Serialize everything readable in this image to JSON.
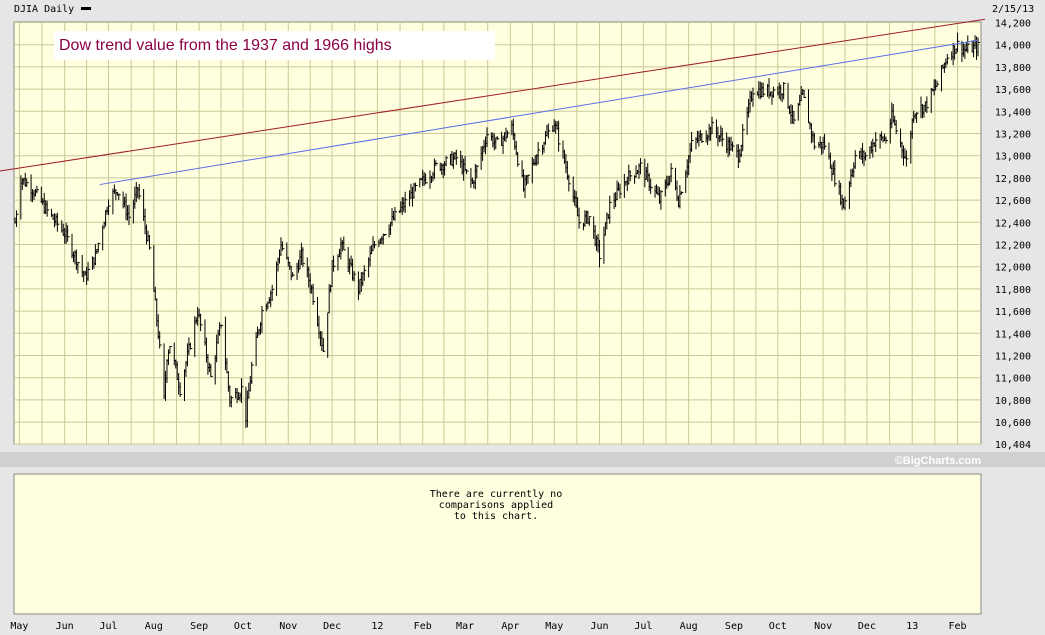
{
  "header": {
    "symbol_label": "DJIA Daily",
    "date_label": "2/15/13"
  },
  "annotation": {
    "text": "Dow trend value from the 1937 and 1966 highs",
    "color": "#8b0045"
  },
  "watermark": "©BigCharts.com",
  "comparison_panel": {
    "line1": "There are currently no",
    "line2": "comparisons applied",
    "line3": "to this chart."
  },
  "colors": {
    "plot_bg": "#ffffe0",
    "grid": "#c8c896",
    "frame_bg": "#e6e6e6",
    "price_bars": "#000000",
    "trend_1937": "#a01c28",
    "trend_1966": "#5a6ee6"
  },
  "chart_data": {
    "type": "line",
    "title": "DJIA Daily",
    "y_ticks": [
      14200,
      14000,
      13800,
      13600,
      13400,
      13200,
      13000,
      12800,
      12600,
      12400,
      12200,
      12000,
      11800,
      11600,
      11400,
      11200,
      11000,
      10800,
      10600,
      10404
    ],
    "ylim": [
      10404,
      14200
    ],
    "x_tick_labels": [
      "May",
      "Jun",
      "Jul",
      "Aug",
      "Sep",
      "Oct",
      "Nov",
      "Dec",
      "12",
      "Feb",
      "Mar",
      "Apr",
      "May",
      "Jun",
      "Jul",
      "Aug",
      "Sep",
      "Oct",
      "Nov",
      "Dec",
      "13",
      "Feb"
    ],
    "grid": true,
    "series": [
      {
        "name": "DJIA Daily (approx. closes)",
        "points": [
          [
            "2011-04-28",
            12400
          ],
          [
            "2011-05-02",
            12800
          ],
          [
            "2011-05-10",
            12700
          ],
          [
            "2011-05-20",
            12500
          ],
          [
            "2011-06-01",
            12300
          ],
          [
            "2011-06-15",
            11900
          ],
          [
            "2011-06-22",
            12100
          ],
          [
            "2011-07-01",
            12600
          ],
          [
            "2011-07-07",
            12700
          ],
          [
            "2011-07-15",
            12450
          ],
          [
            "2011-07-21",
            12700
          ],
          [
            "2011-07-29",
            12150
          ],
          [
            "2011-08-04",
            11400
          ],
          [
            "2011-08-08",
            10800
          ],
          [
            "2011-08-10",
            11200
          ],
          [
            "2011-08-12",
            11300
          ],
          [
            "2011-08-19",
            10900
          ],
          [
            "2011-08-31",
            11600
          ],
          [
            "2011-09-09",
            11000
          ],
          [
            "2011-09-16",
            11500
          ],
          [
            "2011-09-22",
            10800
          ],
          [
            "2011-09-30",
            10900
          ],
          [
            "2011-10-03",
            10650
          ],
          [
            "2011-10-07",
            11100
          ],
          [
            "2011-10-14",
            11600
          ],
          [
            "2011-10-21",
            11800
          ],
          [
            "2011-10-27",
            12200
          ],
          [
            "2011-11-04",
            11900
          ],
          [
            "2011-11-10",
            12100
          ],
          [
            "2011-11-17",
            11800
          ],
          [
            "2011-11-25",
            11250
          ],
          [
            "2011-12-01",
            12000
          ],
          [
            "2011-12-07",
            12200
          ],
          [
            "2011-12-19",
            11800
          ],
          [
            "2011-12-30",
            12200
          ],
          [
            "2012-01-13",
            12450
          ],
          [
            "2012-01-27",
            12700
          ],
          [
            "2012-02-10",
            12900
          ],
          [
            "2012-02-24",
            12980
          ],
          [
            "2012-03-06",
            12750
          ],
          [
            "2012-03-16",
            13200
          ],
          [
            "2012-03-23",
            13100
          ],
          [
            "2012-04-02",
            13250
          ],
          [
            "2012-04-10",
            12700
          ],
          [
            "2012-04-20",
            13050
          ],
          [
            "2012-05-01",
            13300
          ],
          [
            "2012-05-11",
            12800
          ],
          [
            "2012-05-18",
            12400
          ],
          [
            "2012-05-25",
            12450
          ],
          [
            "2012-06-01",
            12100
          ],
          [
            "2012-06-08",
            12550
          ],
          [
            "2012-06-20",
            12800
          ],
          [
            "2012-06-29",
            12900
          ],
          [
            "2012-07-12",
            12600
          ],
          [
            "2012-07-20",
            12850
          ],
          [
            "2012-07-25",
            12600
          ],
          [
            "2012-08-03",
            13100
          ],
          [
            "2012-08-17",
            13250
          ],
          [
            "2012-08-24",
            13150
          ],
          [
            "2012-09-04",
            13000
          ],
          [
            "2012-09-14",
            13600
          ],
          [
            "2012-09-21",
            13580
          ],
          [
            "2012-10-05",
            13600
          ],
          [
            "2012-10-12",
            13300
          ],
          [
            "2012-10-18",
            13550
          ],
          [
            "2012-10-26",
            13100
          ],
          [
            "2012-11-02",
            13100
          ],
          [
            "2012-11-09",
            12800
          ],
          [
            "2012-11-15",
            12550
          ],
          [
            "2012-11-23",
            13000
          ],
          [
            "2012-11-30",
            13000
          ],
          [
            "2012-12-07",
            13150
          ],
          [
            "2012-12-14",
            13150
          ],
          [
            "2012-12-18",
            13350
          ],
          [
            "2012-12-28",
            12950
          ],
          [
            "2013-01-02",
            13400
          ],
          [
            "2013-01-10",
            13450
          ],
          [
            "2013-01-18",
            13650
          ],
          [
            "2013-01-25",
            13900
          ],
          [
            "2013-02-01",
            14000
          ],
          [
            "2013-02-06",
            13950
          ],
          [
            "2013-02-11",
            13970
          ],
          [
            "2013-02-15",
            13980
          ]
        ]
      },
      {
        "name": "Trend from 1937 high",
        "points": [
          [
            "2011-04-07",
            12840
          ],
          [
            "2013-02-20",
            14230
          ]
        ]
      },
      {
        "name": "Trend from 1966 high",
        "points": [
          [
            "2011-06-25",
            12740
          ],
          [
            "2013-02-15",
            14040
          ]
        ]
      }
    ]
  }
}
